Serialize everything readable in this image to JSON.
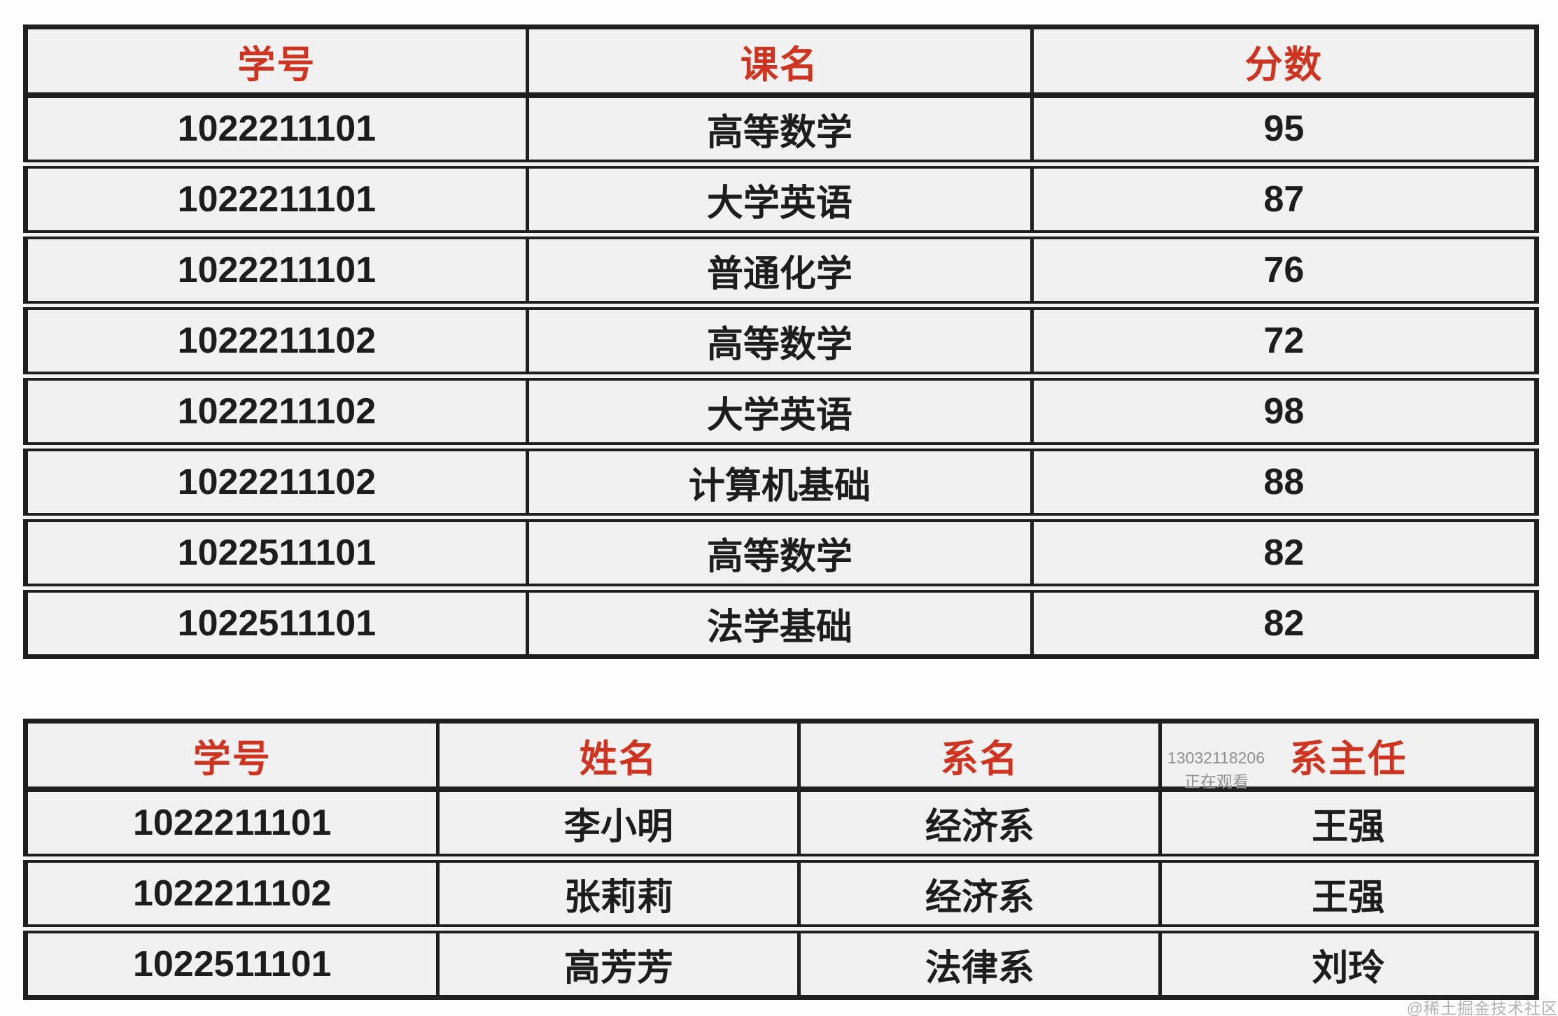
{
  "colors": {
    "header_text": "#cf3420",
    "body_text": "#1d1d1d",
    "cell_background": "#f1f1f1",
    "table_border": "#1f1f1f",
    "viewer_watermark_gray": "#8f8f8f",
    "community_watermark_gray": "#b3b3b3"
  },
  "scores_table": {
    "headers": [
      "学号",
      "课名",
      "分数"
    ],
    "rows": [
      [
        "1022211101",
        "高等数学",
        "95"
      ],
      [
        "1022211101",
        "大学英语",
        "87"
      ],
      [
        "1022211101",
        "普通化学",
        "76"
      ],
      [
        "1022211102",
        "高等数学",
        "72"
      ],
      [
        "1022211102",
        "大学英语",
        "98"
      ],
      [
        "1022211102",
        "计算机基础",
        "88"
      ],
      [
        "1022511101",
        "高等数学",
        "82"
      ],
      [
        "1022511101",
        "法学基础",
        "82"
      ]
    ]
  },
  "students_table": {
    "headers": [
      "学号",
      "姓名",
      "系名",
      "系主任"
    ],
    "rows": [
      [
        "1022211101",
        "李小明",
        "经济系",
        "王强"
      ],
      [
        "1022211102",
        "张莉莉",
        "经济系",
        "王强"
      ],
      [
        "1022511101",
        "高芳芳",
        "法律系",
        "刘玲"
      ]
    ]
  },
  "watermarks": {
    "viewer_id": "13032118206",
    "viewer_status": "正在观看",
    "community": "@稀土掘金技术社区"
  }
}
